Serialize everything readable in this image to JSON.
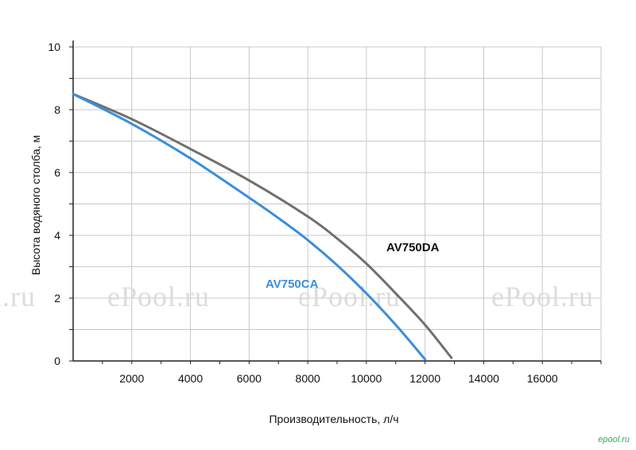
{
  "chart_data": {
    "type": "line",
    "xlabel": "Производительность, л/ч",
    "ylabel": "Высота водяного столба, м",
    "xlim": [
      0,
      18000
    ],
    "ylim": [
      0,
      10
    ],
    "x_ticks": [
      "2000",
      "4000",
      "6000",
      "8000",
      "10000",
      "12000",
      "14000",
      "16000"
    ],
    "y_ticks": [
      "0",
      "2",
      "4",
      "6",
      "8",
      "10"
    ],
    "grid": true,
    "series": [
      {
        "name": "AV750DA",
        "color": "#707070",
        "x": [
          0,
          2000,
          4000,
          6000,
          8000,
          9000,
          10000,
          11000,
          12000,
          12900
        ],
        "y": [
          8.5,
          7.7,
          6.75,
          5.75,
          4.6,
          3.9,
          3.1,
          2.15,
          1.15,
          0.1
        ]
      },
      {
        "name": "AV750CA",
        "color": "#3a8fd9",
        "x": [
          0,
          2000,
          4000,
          6000,
          7000,
          8000,
          9000,
          10000,
          11000,
          12000
        ],
        "y": [
          8.5,
          7.55,
          6.45,
          5.2,
          4.55,
          3.85,
          3.05,
          2.15,
          1.15,
          0.05
        ]
      }
    ]
  },
  "watermark": {
    "texts": [
      "l.ru",
      "ePool.ru",
      "ePool.ru",
      "ePool.ru"
    ]
  },
  "brand": {
    "text": "epool.ru",
    "color": "#2fae56"
  }
}
